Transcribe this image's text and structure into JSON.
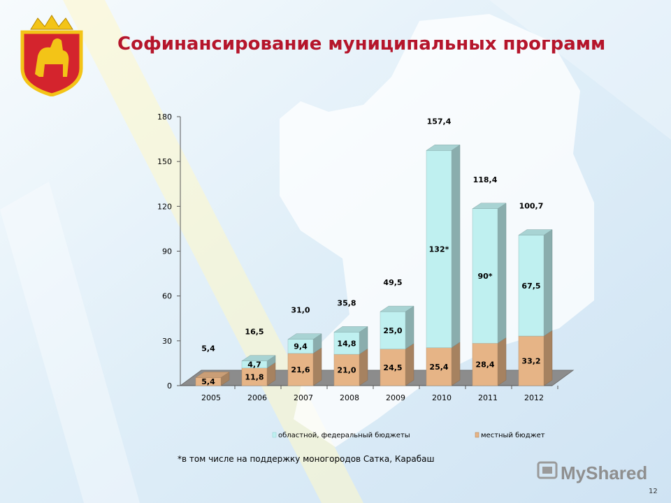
{
  "slide": {
    "title": "Софинансирование муниципальных программ",
    "footnote": "*в том числе на поддержку моногородов Сатка, Карабаш",
    "page_number": "12",
    "watermark": "MyShared"
  },
  "colors": {
    "title": "#b5152b",
    "regional_federal": "#bff0f0",
    "local": "#e6b486"
  },
  "chart_data": {
    "type": "bar",
    "stacked": true,
    "categories": [
      "2005",
      "2006",
      "2007",
      "2008",
      "2009",
      "2010",
      "2011",
      "2012"
    ],
    "ylim": [
      0,
      180
    ],
    "yticks": [
      0,
      30,
      60,
      90,
      120,
      150,
      180
    ],
    "series": [
      {
        "name": "местный бюджет",
        "values": [
          5.4,
          11.8,
          21.6,
          21.0,
          24.5,
          25.4,
          28.4,
          33.2
        ],
        "labels": [
          "5,4",
          "11,8",
          "21,6",
          "21,0",
          "24,5",
          "25,4",
          "28,4",
          "33,2"
        ]
      },
      {
        "name": "областной, федеральный бюджеты",
        "values": [
          0,
          4.7,
          9.4,
          14.8,
          25.0,
          132,
          90,
          67.5
        ],
        "labels": [
          "",
          "4,7",
          "9,4",
          "14,8",
          "25,0",
          "132*",
          "90*",
          "67,5"
        ]
      }
    ],
    "totals": [
      5.4,
      16.5,
      31.0,
      35.8,
      49.5,
      157.4,
      118.4,
      100.7
    ],
    "total_labels": [
      "5,4",
      "16,5",
      "31,0",
      "35,8",
      "49,5",
      "157,4",
      "118,4",
      "100,7"
    ],
    "legend_placement": "bottom",
    "grid": false
  }
}
